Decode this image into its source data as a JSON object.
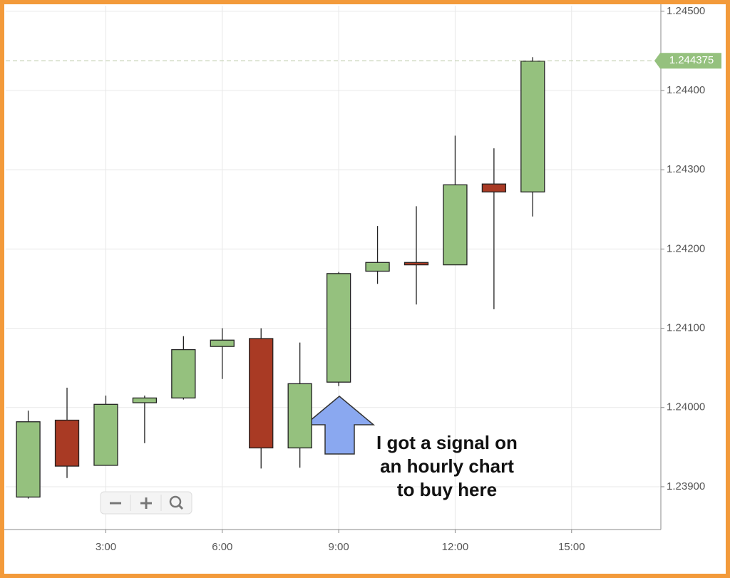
{
  "chart_data": {
    "type": "candlestick",
    "x": [
      1,
      2,
      3,
      4,
      5,
      6,
      7,
      8,
      9,
      10,
      11,
      12,
      13,
      14
    ],
    "open": [
      1.23887,
      1.23984,
      1.23927,
      1.24006,
      1.24012,
      1.24077,
      1.24087,
      1.23949,
      1.24032,
      1.24172,
      1.24183,
      1.2418,
      1.24282,
      1.24272
    ],
    "high": [
      1.23996,
      1.24025,
      1.24015,
      1.24015,
      1.2409,
      1.241,
      1.241,
      1.24082,
      1.24171,
      1.24229,
      1.24254,
      1.24343,
      1.24327,
      1.24442
    ],
    "low": [
      1.23885,
      1.23911,
      1.23927,
      1.23955,
      1.2401,
      1.24036,
      1.23923,
      1.23924,
      1.24027,
      1.24156,
      1.2413,
      1.2418,
      1.24124,
      1.24241
    ],
    "close": [
      1.23982,
      1.23926,
      1.24004,
      1.24012,
      1.24073,
      1.24085,
      1.23949,
      1.2403,
      1.24169,
      1.24183,
      1.2418,
      1.24281,
      1.24272,
      1.24437
    ],
    "up_color": "#95c17e",
    "down_color": "#a93a24",
    "xlim": [
      0.42,
      17.3
    ],
    "xticks": [
      {
        "value": 3,
        "label": "3:00"
      },
      {
        "value": 6,
        "label": "6:00"
      },
      {
        "value": 9,
        "label": "9:00"
      },
      {
        "value": 12,
        "label": "12:00"
      },
      {
        "value": 15,
        "label": "15:00"
      }
    ],
    "ylim": [
      1.23846,
      1.24507
    ],
    "yticks": [
      {
        "value": 1.239,
        "label": "1.23900"
      },
      {
        "value": 1.24,
        "label": "1.24000"
      },
      {
        "value": 1.241,
        "label": "1.24100"
      },
      {
        "value": 1.242,
        "label": "1.24200"
      },
      {
        "value": 1.243,
        "label": "1.24300"
      },
      {
        "value": 1.244,
        "label": "1.24400"
      },
      {
        "value": 1.245,
        "label": "1.24500"
      }
    ],
    "grid": true,
    "current_price": 1.244375,
    "annotation": [
      "I got a signal on",
      "an hourly chart",
      "to buy here"
    ]
  }
}
